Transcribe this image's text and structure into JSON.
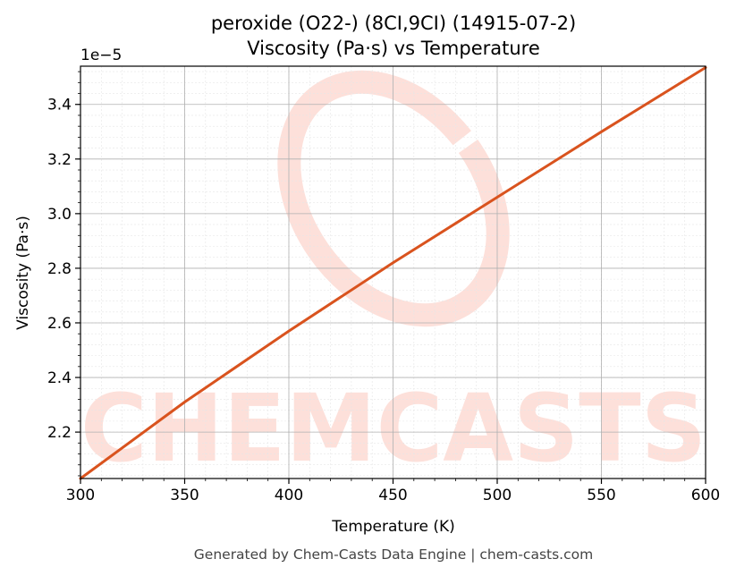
{
  "chart_data": {
    "type": "line",
    "title_line1": "peroxide (O22-) (8CI,9CI) (14915-07-2)",
    "title_line2": "Viscosity (Pa·s) vs Temperature",
    "xlabel": "Temperature (K)",
    "ylabel": "Viscosity (Pa·s)",
    "offset_text": "1e−5",
    "xlim": [
      300,
      600
    ],
    "ylim": [
      2.03,
      3.54
    ],
    "y_scale_note": "values ×1e-5",
    "xticks": [
      300,
      350,
      400,
      450,
      500,
      550,
      600
    ],
    "xtick_labels": [
      "300",
      "350",
      "400",
      "450",
      "500",
      "550",
      "600"
    ],
    "yticks": [
      2.2,
      2.4,
      2.6,
      2.8,
      3.0,
      3.2,
      3.4
    ],
    "ytick_labels": [
      "2.2",
      "2.4",
      "2.6",
      "2.8",
      "3.0",
      "3.2",
      "3.4"
    ],
    "grid": true,
    "series": [
      {
        "color": "#d9531e",
        "x": [
          300,
          350,
          400,
          450,
          500,
          550,
          600
        ],
        "y": [
          2.03,
          2.31,
          2.57,
          2.82,
          3.06,
          3.3,
          3.535
        ]
      }
    ]
  },
  "watermark": {
    "text": "CHEMCASTS",
    "color": "#fde0da"
  },
  "footer": {
    "text": "Generated by Chem-Casts Data Engine | chem-casts.com"
  }
}
